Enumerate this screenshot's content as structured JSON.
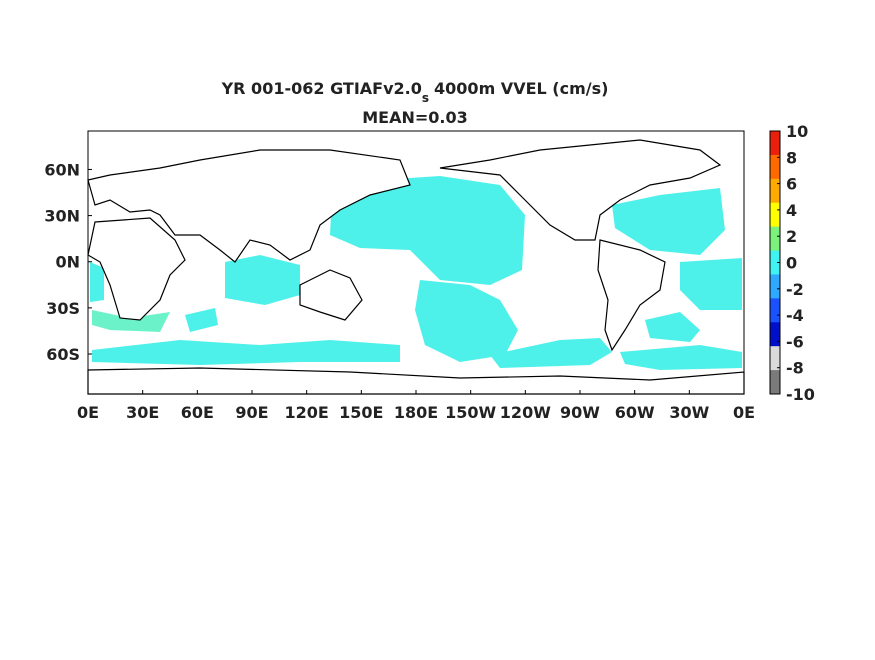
{
  "title": {
    "main": "YR 001-062 GTIAFv2.0",
    "subscript": "s",
    "rest": "4000m VVEL (cm/s)"
  },
  "subtitle": "MEAN=0.03",
  "map": {
    "lon_range": [
      0,
      360
    ],
    "lat_range": [
      -86,
      85
    ],
    "lon_ticks": [
      {
        "value": 0,
        "label": "0E"
      },
      {
        "value": 30,
        "label": "30E"
      },
      {
        "value": 60,
        "label": "60E"
      },
      {
        "value": 90,
        "label": "90E"
      },
      {
        "value": 120,
        "label": "120E"
      },
      {
        "value": 150,
        "label": "150E"
      },
      {
        "value": 180,
        "label": "180E"
      },
      {
        "value": 210,
        "label": "150W"
      },
      {
        "value": 240,
        "label": "120W"
      },
      {
        "value": 270,
        "label": "90W"
      },
      {
        "value": 300,
        "label": "60W"
      },
      {
        "value": 330,
        "label": "30W"
      },
      {
        "value": 360,
        "label": "0E"
      }
    ],
    "lat_ticks": [
      {
        "value": 60,
        "label": "60N"
      },
      {
        "value": 30,
        "label": "30N"
      },
      {
        "value": 0,
        "label": "0N"
      },
      {
        "value": -30,
        "label": "30S"
      },
      {
        "value": -60,
        "label": "60S"
      }
    ]
  },
  "colorbar": {
    "range": [
      -10,
      10
    ],
    "ticks": [
      10,
      8,
      6,
      4,
      2,
      0,
      -2,
      -4,
      -6,
      -8,
      -10
    ],
    "colors": [
      "#e8200c",
      "#ff6a00",
      "#ffaa00",
      "#ffff00",
      "#7cf27c",
      "#40f2f2",
      "#2fa8ff",
      "#1a52ff",
      "#0010c8",
      "#dadada",
      "#7a7a7a"
    ]
  }
}
